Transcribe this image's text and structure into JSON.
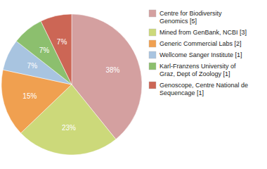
{
  "chart_data": {
    "type": "pie",
    "categories": [
      "Centre for Biodiversity\nGenomics [5]",
      "Mined from GenBank, NCBI [3]",
      "Generic Commercial Labs [2]",
      "Wellcome Sanger Institute [1]",
      "Karl-Franzens University of\nGraz, Dept of Zoology [1]",
      "Genoscope, Centre National de\nSequencage [1]"
    ],
    "values": [
      38,
      23,
      15,
      7,
      7,
      7
    ],
    "value_labels": [
      "38%",
      "23%",
      "15%",
      "7%",
      "7%",
      "7%"
    ],
    "colors": [
      "#d4a0a0",
      "#ccd97a",
      "#f0a050",
      "#a8c4e0",
      "#8cbf6e",
      "#cc6655"
    ],
    "data_labels": true,
    "legend": "right"
  }
}
